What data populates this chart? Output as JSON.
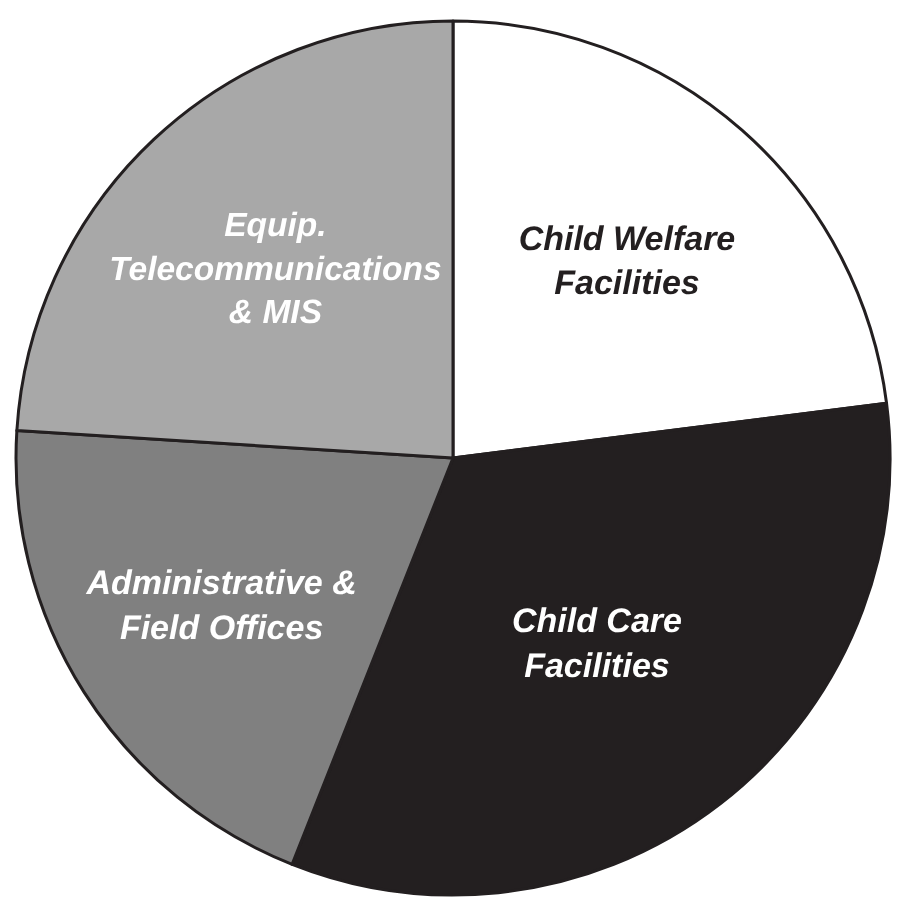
{
  "chart_data": {
    "type": "pie",
    "categories": [
      "Child Welfare\nFacilities",
      "Child Care\nFacilities",
      "Administrative &\nField Offices",
      "Equip.\nTelecommunications\n& MIS"
    ],
    "values": [
      23,
      33,
      20,
      24
    ],
    "colors": [
      "#ffffff",
      "#231f20",
      "#808080",
      "#a8a8a8"
    ]
  }
}
